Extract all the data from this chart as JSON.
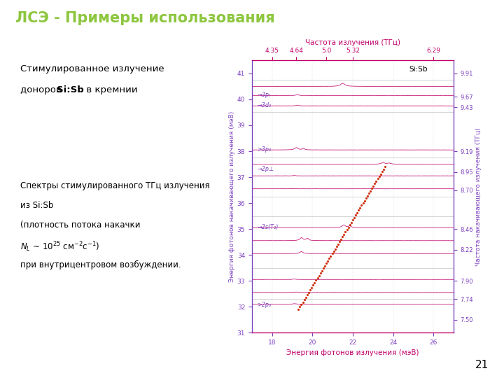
{
  "title": "ЛСЭ - Примеры использования",
  "title_color": "#8dc63f",
  "title_fontsize": 15,
  "bg_color": "#ffffff",
  "text1_line1": "Стимулированное излучение",
  "text1_line2_pre": "доноров ",
  "text1_line2_bold": "Si:Sb",
  "text1_line2_post": " в кремнии",
  "text2_line1": "Спектры стимулированного ТГц излучения",
  "text2_line2": "из Si:Sb",
  "text2_line3a": "(плотность потока накачки ",
  "text2_line4": "при внутрицентровом возбуждении.",
  "page_num": "21",
  "plot_ylabel_left": "Энергия фотонов накачивающего излучения (мэВ)",
  "plot_ylabel_right": "Частота накачивающего излучения (ТГц)",
  "plot_xlabel": "Энергия фотонов излучения (мэВ)",
  "plot_top_label": "Частота излучения (ТГц)",
  "plot_color": "#c0006a",
  "plot_axis_color": "#7b3fbe",
  "top_axis_color": "#c0006a",
  "si_sb_label": "Si:Sb",
  "xticks": [
    18,
    20,
    22,
    24,
    26
  ],
  "left_yticks": [
    31,
    32,
    33,
    34,
    35,
    36,
    37,
    38,
    39,
    40,
    41
  ],
  "right_ticks_pos": [
    41.0,
    40.1,
    39.7,
    38.0,
    37.2,
    36.5,
    35.0,
    34.2,
    33.0,
    32.3,
    31.5
  ],
  "right_ticks_labels": [
    "9.91",
    "9.67",
    "9.43",
    "9.19",
    "8.95",
    "8.70",
    "8.46",
    "8.22",
    "7.90",
    "7.74",
    "7.50"
  ],
  "thz_vals": [
    4.35,
    4.64,
    5.32,
    5.0,
    6.29
  ],
  "separators": [
    40.75,
    39.5,
    37.75,
    36.25,
    35.5,
    33.5,
    32.3
  ],
  "pump_energies": [
    40.5,
    40.15,
    39.75,
    38.05,
    37.5,
    37.05,
    36.55,
    35.05,
    34.55,
    34.05,
    33.05,
    32.55,
    32.1
  ],
  "xlim": [
    17,
    27
  ],
  "ylim": [
    31,
    41.5
  ]
}
